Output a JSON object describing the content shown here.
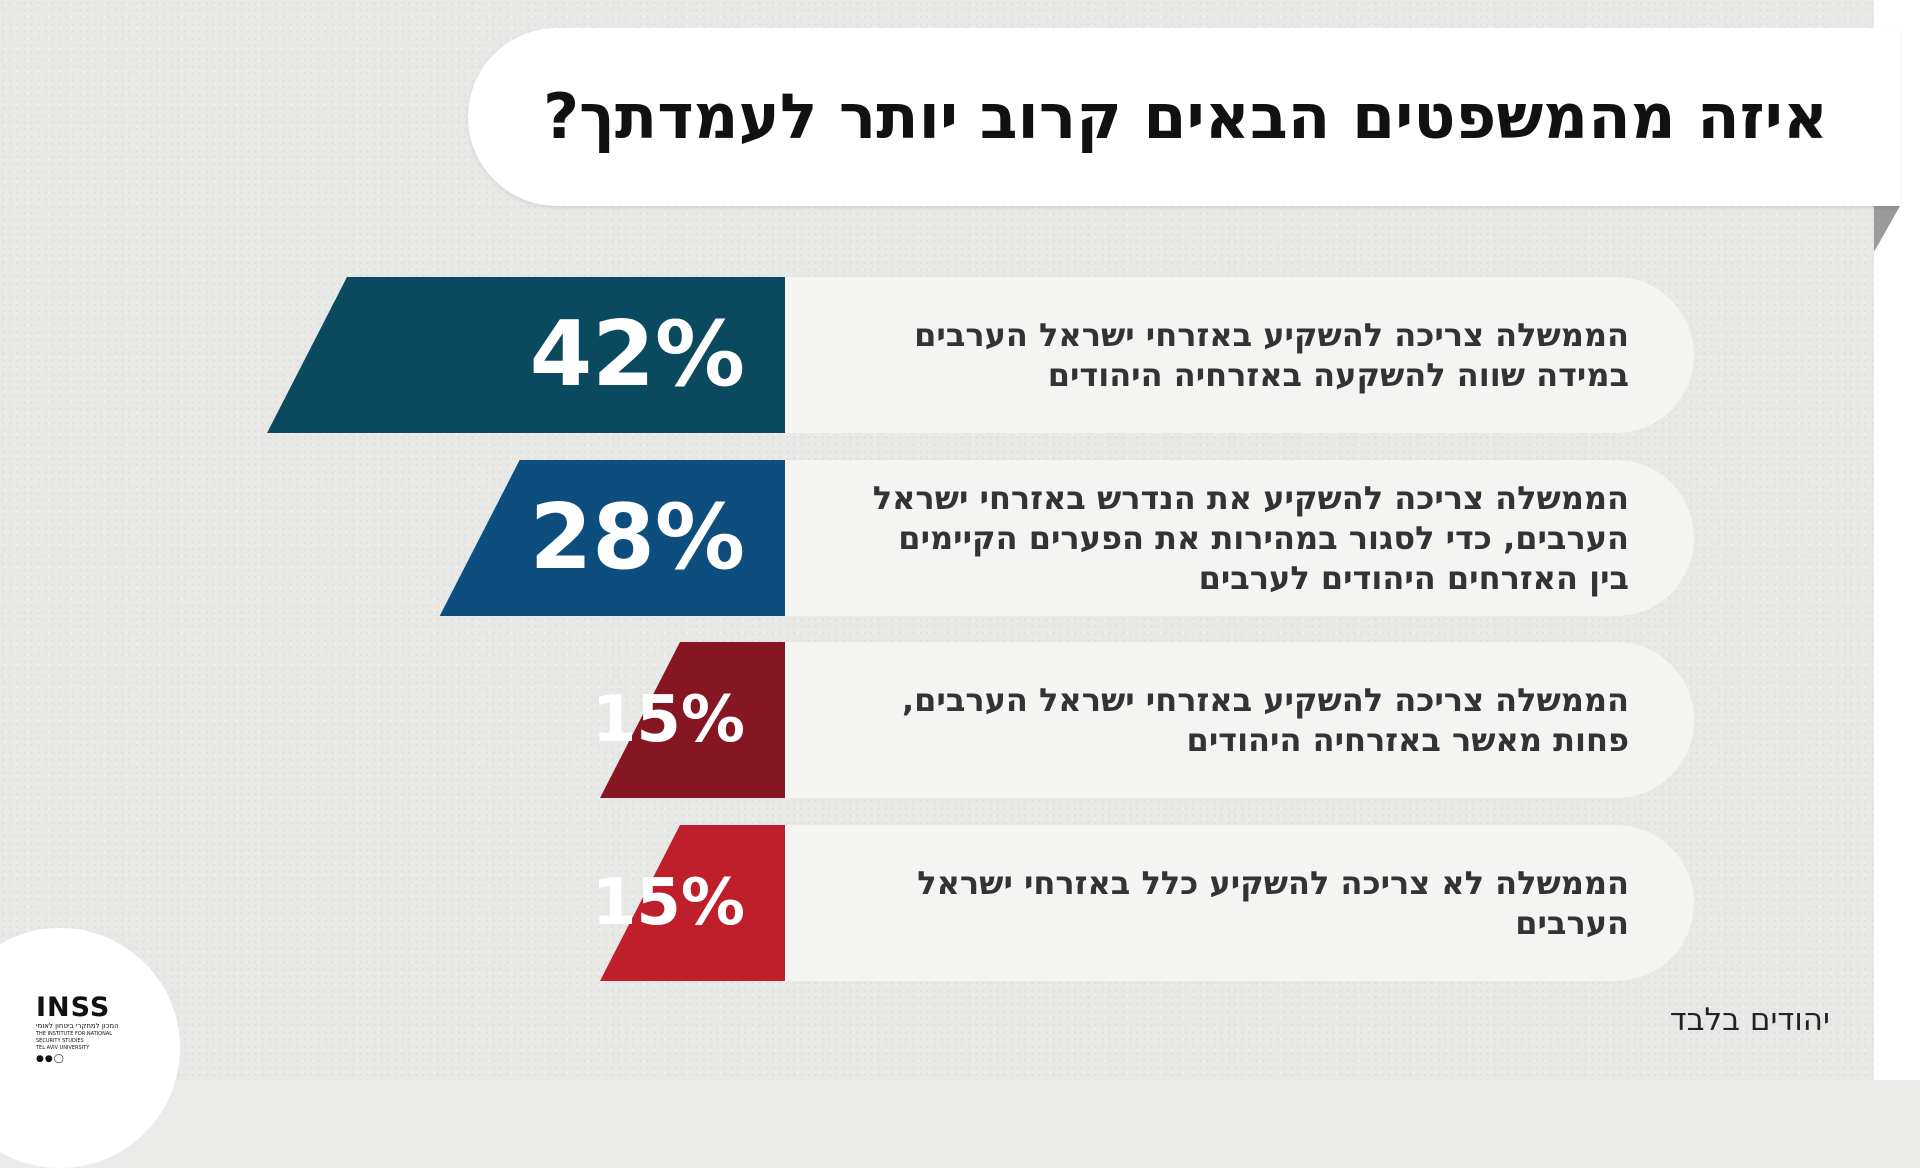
{
  "title": "איזה מהמשפטים הבאים קרוב יותר לעמדתך?",
  "chart_data": {
    "type": "bar",
    "title": "איזה מהמשפטים הבאים קרוב יותר לעמדתך?",
    "value_suffix": "%",
    "categories": [
      "הממשלה צריכה להשקיע באזרחי ישראל הערבים במידה שווה להשקעה באזרחיה היהודים",
      "הממשלה צריכה להשקיע את הנדרש באזרחי ישראל הערבים, כדי לסגור במהירות את הפערים הקיימים בין האזרחים היהודים לערבים",
      "הממשלה צריכה להשקיע באזרחי ישראל הערבים, פחות מאשר באזרחיה היהודים",
      "הממשלה לא צריכה להשקיע כלל באזרחי ישראל הערבים"
    ],
    "values": [
      42,
      28,
      15,
      15
    ],
    "colors": [
      "#0b4a5e",
      "#0d4e7f",
      "#861621",
      "#bf1e2b"
    ],
    "labels": [
      "42%",
      "28%",
      "15%",
      "15%"
    ],
    "note": "יהודים בלבד"
  },
  "logo": {
    "name": "INSS",
    "subtitle_he": "המכון למחקרי ביטחון לאומי",
    "subtitle_en": "THE INSTITUTE FOR NATIONAL SECURITY STUDIES",
    "subtitle_en2": "TEL AVIV UNIVERSITY"
  }
}
